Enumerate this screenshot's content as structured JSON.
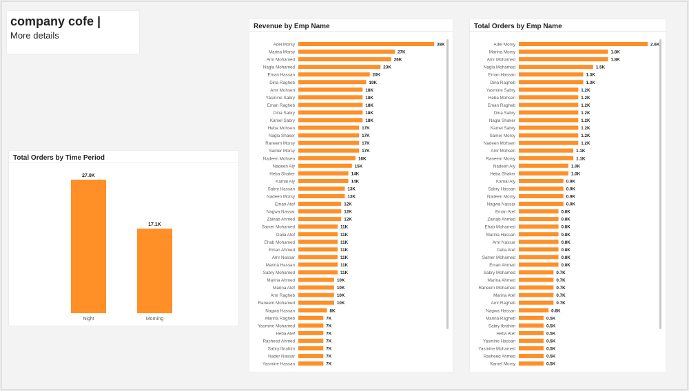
{
  "header": {
    "title": "company cofe |",
    "subtitle": "More details"
  },
  "colors": {
    "bar": "#FF8F26",
    "text": "#252423",
    "label": "#605E5C"
  },
  "chart_data": [
    {
      "type": "bar",
      "orientation": "vertical",
      "title": "Total Orders by Time Period",
      "categories": [
        "Night",
        "Morning"
      ],
      "values": [
        27.0,
        17.1
      ],
      "labels": [
        "27.0K",
        "17.1K"
      ],
      "unit": "K",
      "grid": false
    },
    {
      "type": "bar",
      "orientation": "horizontal",
      "title": "Revenue by Emp Name",
      "unit": "K",
      "grid": false,
      "categories": [
        "Adel Morsy",
        "Marina Morsy",
        "Amr Mohamed",
        "Nagla Mohamed",
        "Eman Hassan",
        "Dina Ragheb",
        "Amr Mohsen",
        "Yasmine Sabry",
        "Eman Ragheb",
        "Dina Sabry",
        "Kamel Sabry",
        "Heba Mohsen",
        "Nagla Shaker",
        "Raneem Morsy",
        "Samer Morsy",
        "Nadeen Mohsen",
        "Nadeen Aly",
        "Heba Shaker",
        "Kamal Aly",
        "Sabry Hassan",
        "Nadeen Morsy",
        "Eman Atef",
        "Nagwa Nassar",
        "Zainab Ahmed",
        "Samer Mohamed",
        "Dalia Atef",
        "Ehab Mohamed",
        "Eman Ahmed",
        "Amr Nassar",
        "Marina Hassan",
        "Sabry Mohamed",
        "Marina Ahmed",
        "Marina Atef",
        "Amr Ragheb",
        "Raneem Mohamed",
        "Nagwa Hassan",
        "Marina Ragheb",
        "Yasmine Mohamed",
        "Heba Atef",
        "Rasheed Ahmed",
        "Sabry Ibrahim",
        "Nader Nassar",
        "Yasmine Hassan"
      ],
      "values": [
        38,
        27,
        26,
        23,
        20,
        19,
        18,
        18,
        18,
        18,
        18,
        17,
        17,
        17,
        17,
        16,
        15,
        14,
        14,
        13,
        13,
        12,
        12,
        12,
        11,
        11,
        11,
        11,
        11,
        11,
        11,
        10,
        10,
        10,
        10,
        8,
        7,
        7,
        7,
        7,
        7,
        7,
        7
      ]
    },
    {
      "type": "bar",
      "orientation": "horizontal",
      "title": "Total Orders by Emp Name",
      "unit": "K",
      "grid": false,
      "categories": [
        "Adel Morsy",
        "Marina Morsy",
        "Amr Mohamed",
        "Nagla Mohamed",
        "Eman Hassan",
        "Dina Ragheb",
        "Yasmine Sabry",
        "Heba Mohsen",
        "Eman Ragheb",
        "Dina Sabry",
        "Nagla Shaker",
        "Kamel Sabry",
        "Samer Morsy",
        "Nadeen Mohsen",
        "Amr Mohsen",
        "Raneem Morsy",
        "Nadeen Aly",
        "Heba Shaker",
        "Kamal Aly",
        "Sabry Hassan",
        "Nadeen Morsy",
        "Nagwa Nassar",
        "Eman Atef",
        "Zainab Ahmed",
        "Ehab Mohamed",
        "Marina Hassan",
        "Amr Nassar",
        "Dalia Atef",
        "Samer Mohamed",
        "Eman Ahmed",
        "Sabry Mohamed",
        "Marina Ahmed",
        "Raneem Mohamed",
        "Marina Atef",
        "Amr Ragheb",
        "Nagwa Hassan",
        "Marina Ragheb",
        "Sabry Ibrahim",
        "Heba Atef",
        "Yasmine Hassan",
        "Yasmine Mohamed",
        "Rasheed Ahmed",
        "Kamel Morsy"
      ],
      "values": [
        2.6,
        1.8,
        1.8,
        1.5,
        1.3,
        1.3,
        1.2,
        1.2,
        1.2,
        1.2,
        1.2,
        1.2,
        1.2,
        1.2,
        1.1,
        1.1,
        1.0,
        1.0,
        0.9,
        0.9,
        0.9,
        0.9,
        0.8,
        0.8,
        0.8,
        0.8,
        0.8,
        0.8,
        0.8,
        0.8,
        0.7,
        0.7,
        0.7,
        0.7,
        0.7,
        0.6,
        0.5,
        0.5,
        0.5,
        0.5,
        0.5,
        0.5,
        0.5
      ]
    }
  ]
}
